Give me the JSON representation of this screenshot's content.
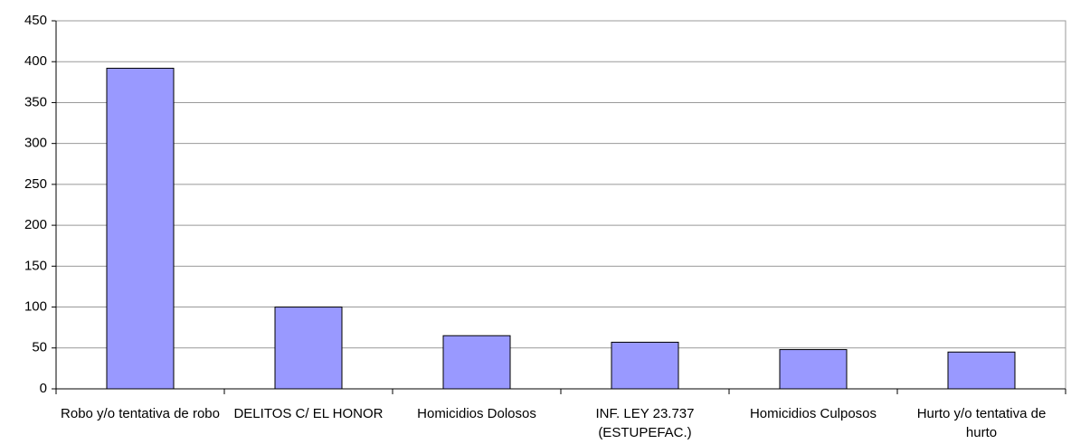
{
  "chart_data": {
    "type": "bar",
    "categories": [
      "Robo y/o tentativa de robo",
      "DELITOS C/ EL HONOR",
      "Homicidios Dolosos",
      "INF. LEY 23.737 (ESTUPEFAC.)",
      "Homicidios Culposos",
      "Hurto y/o tentativa de hurto"
    ],
    "values": [
      392,
      100,
      65,
      57,
      48,
      45
    ],
    "color": "#9999ff",
    "ylim": [
      0,
      450
    ],
    "yticks": [
      0,
      50,
      100,
      150,
      200,
      250,
      300,
      350,
      400,
      450
    ],
    "grid": true
  }
}
